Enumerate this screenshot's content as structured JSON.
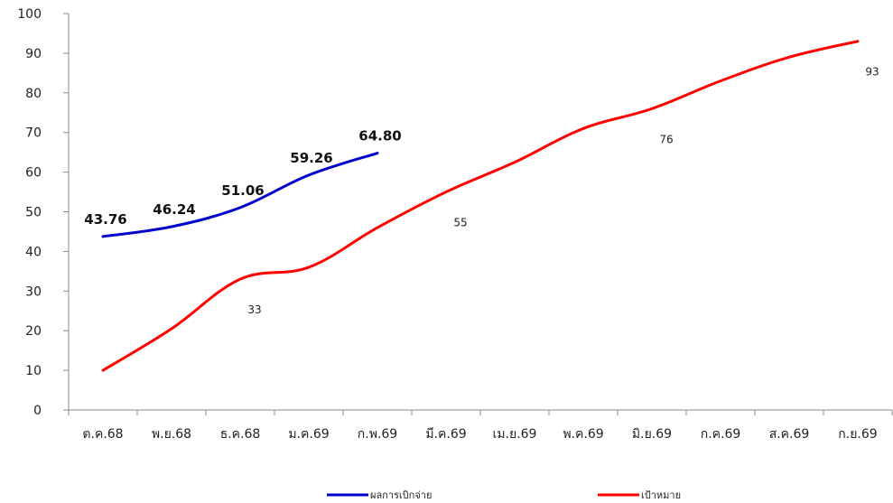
{
  "chart_data": {
    "type": "line",
    "categories": [
      "ต.ค.68",
      "พ.ย.68",
      "ธ.ค.68",
      "ม.ค.69",
      "ก.พ.69",
      "มี.ค.69",
      "เม.ย.69",
      "พ.ค.69",
      "มิ.ย.69",
      "ก.ค.69",
      "ส.ค.69",
      "ก.ย.69"
    ],
    "ylim": [
      0,
      100
    ],
    "yticks": [
      "0",
      "10",
      "20",
      "30",
      "40",
      "50",
      "60",
      "70",
      "80",
      "90",
      "100"
    ],
    "grid": false,
    "legend_position": "bottom",
    "series": [
      {
        "name": "ผลการเบิกจ่าย",
        "color": "#0000cc",
        "values": [
          43.76,
          46.24,
          51.06,
          59.26,
          64.8,
          null,
          null,
          null,
          null,
          null,
          null,
          null
        ],
        "labels": [
          "43.76",
          "46.24",
          "51.06",
          "59.26",
          "64.80",
          "",
          "",
          "",
          "",
          "",
          "",
          ""
        ]
      },
      {
        "name": "เป้าหมาย",
        "color": "#ff0000",
        "values": [
          10,
          20.5,
          33,
          36,
          46,
          55,
          62.5,
          71,
          76,
          83,
          89,
          93
        ],
        "labels": [
          "",
          "",
          "33",
          "",
          "",
          "55",
          "",
          "",
          "76",
          "",
          "",
          "93"
        ]
      }
    ]
  }
}
